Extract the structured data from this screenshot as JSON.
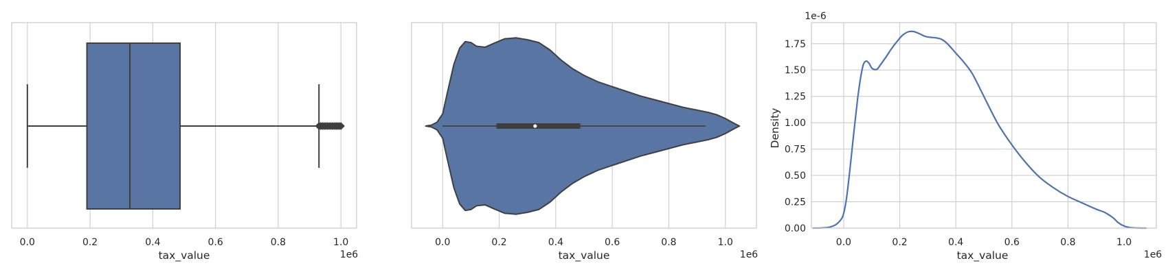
{
  "colors": {
    "fill": "#5975a4",
    "line": "#4c72b0",
    "edge": "#3f3f3f",
    "grid": "#cccccc",
    "frame": "#cccccc"
  },
  "chart_data": [
    {
      "type": "box",
      "xlabel": "tax_value",
      "x_multiplier": "1e6",
      "xlim": [
        -0.05,
        1.05
      ],
      "xticks": [
        0.0,
        0.2,
        0.4,
        0.6,
        0.8,
        1.0
      ],
      "xtick_labels": [
        "0.0",
        "0.2",
        "0.4",
        "0.6",
        "0.8",
        "1.0"
      ],
      "grid": true,
      "box": {
        "whisker_low": 0.0,
        "q1": 0.19,
        "median": 0.327,
        "q3": 0.487,
        "whisker_high": 0.93,
        "outliers_min": 0.93,
        "outliers_max": 1.0
      }
    },
    {
      "type": "violin",
      "xlabel": "tax_value",
      "x_multiplier": "1e6",
      "xlim": [
        -0.11,
        1.11
      ],
      "xticks": [
        0.0,
        0.2,
        0.4,
        0.6,
        0.8,
        1.0
      ],
      "xtick_labels": [
        "0.0",
        "0.2",
        "0.4",
        "0.6",
        "0.8",
        "1.0"
      ],
      "grid": true,
      "profile": [
        [
          -0.06,
          0.0
        ],
        [
          -0.04,
          0.01
        ],
        [
          -0.02,
          0.04
        ],
        [
          0.0,
          0.13
        ],
        [
          0.02,
          0.4
        ],
        [
          0.04,
          0.66
        ],
        [
          0.06,
          0.83
        ],
        [
          0.08,
          0.9
        ],
        [
          0.1,
          0.89
        ],
        [
          0.12,
          0.85
        ],
        [
          0.15,
          0.84
        ],
        [
          0.18,
          0.88
        ],
        [
          0.22,
          0.93
        ],
        [
          0.26,
          0.94
        ],
        [
          0.3,
          0.92
        ],
        [
          0.34,
          0.89
        ],
        [
          0.38,
          0.81
        ],
        [
          0.42,
          0.7
        ],
        [
          0.46,
          0.61
        ],
        [
          0.5,
          0.54
        ],
        [
          0.55,
          0.47
        ],
        [
          0.6,
          0.42
        ],
        [
          0.65,
          0.37
        ],
        [
          0.7,
          0.32
        ],
        [
          0.75,
          0.28
        ],
        [
          0.8,
          0.24
        ],
        [
          0.85,
          0.2
        ],
        [
          0.9,
          0.17
        ],
        [
          0.94,
          0.145
        ],
        [
          0.97,
          0.12
        ],
        [
          1.0,
          0.08
        ],
        [
          1.03,
          0.03
        ],
        [
          1.05,
          0.0
        ]
      ],
      "inner_box": {
        "whisker_low": 0.0,
        "q1": 0.19,
        "median": 0.327,
        "q3": 0.487,
        "whisker_high": 0.93
      }
    },
    {
      "type": "line",
      "xlabel": "tax_value",
      "ylabel": "Density",
      "x_multiplier": "1e6",
      "y_multiplier": "1e-6",
      "xlim": [
        -0.115,
        1.115
      ],
      "ylim": [
        0,
        1.95
      ],
      "xticks": [
        0.0,
        0.2,
        0.4,
        0.6,
        0.8,
        1.0
      ],
      "xtick_labels": [
        "0.0",
        "0.2",
        "0.4",
        "0.6",
        "0.8",
        "1.0"
      ],
      "yticks": [
        0.0,
        0.25,
        0.5,
        0.75,
        1.0,
        1.25,
        1.5,
        1.75
      ],
      "ytick_labels": [
        "0.00",
        "0.25",
        "0.50",
        "0.75",
        "1.00",
        "1.25",
        "1.50",
        "1.75"
      ],
      "grid": true,
      "series": [
        {
          "x": [
            -0.11,
            -0.06,
            -0.03,
            -0.01,
            0.0,
            0.01,
            0.02,
            0.03,
            0.04,
            0.05,
            0.06,
            0.07,
            0.08,
            0.09,
            0.1,
            0.11,
            0.12,
            0.13,
            0.15,
            0.17,
            0.19,
            0.21,
            0.23,
            0.25,
            0.27,
            0.29,
            0.31,
            0.33,
            0.35,
            0.37,
            0.4,
            0.43,
            0.46,
            0.5,
            0.55,
            0.6,
            0.65,
            0.7,
            0.75,
            0.8,
            0.85,
            0.9,
            0.93,
            0.96,
            0.98,
            1.0,
            1.02,
            1.04,
            1.06,
            1.08
          ],
          "y": [
            0.0,
            0.005,
            0.03,
            0.08,
            0.14,
            0.28,
            0.5,
            0.75,
            1.0,
            1.23,
            1.42,
            1.55,
            1.585,
            1.565,
            1.52,
            1.505,
            1.51,
            1.545,
            1.62,
            1.7,
            1.77,
            1.83,
            1.862,
            1.865,
            1.845,
            1.82,
            1.81,
            1.805,
            1.79,
            1.75,
            1.66,
            1.57,
            1.46,
            1.25,
            0.99,
            0.79,
            0.62,
            0.48,
            0.38,
            0.3,
            0.24,
            0.18,
            0.15,
            0.1,
            0.05,
            0.02,
            0.006,
            0.002,
            0.0,
            0.0
          ]
        }
      ]
    }
  ]
}
